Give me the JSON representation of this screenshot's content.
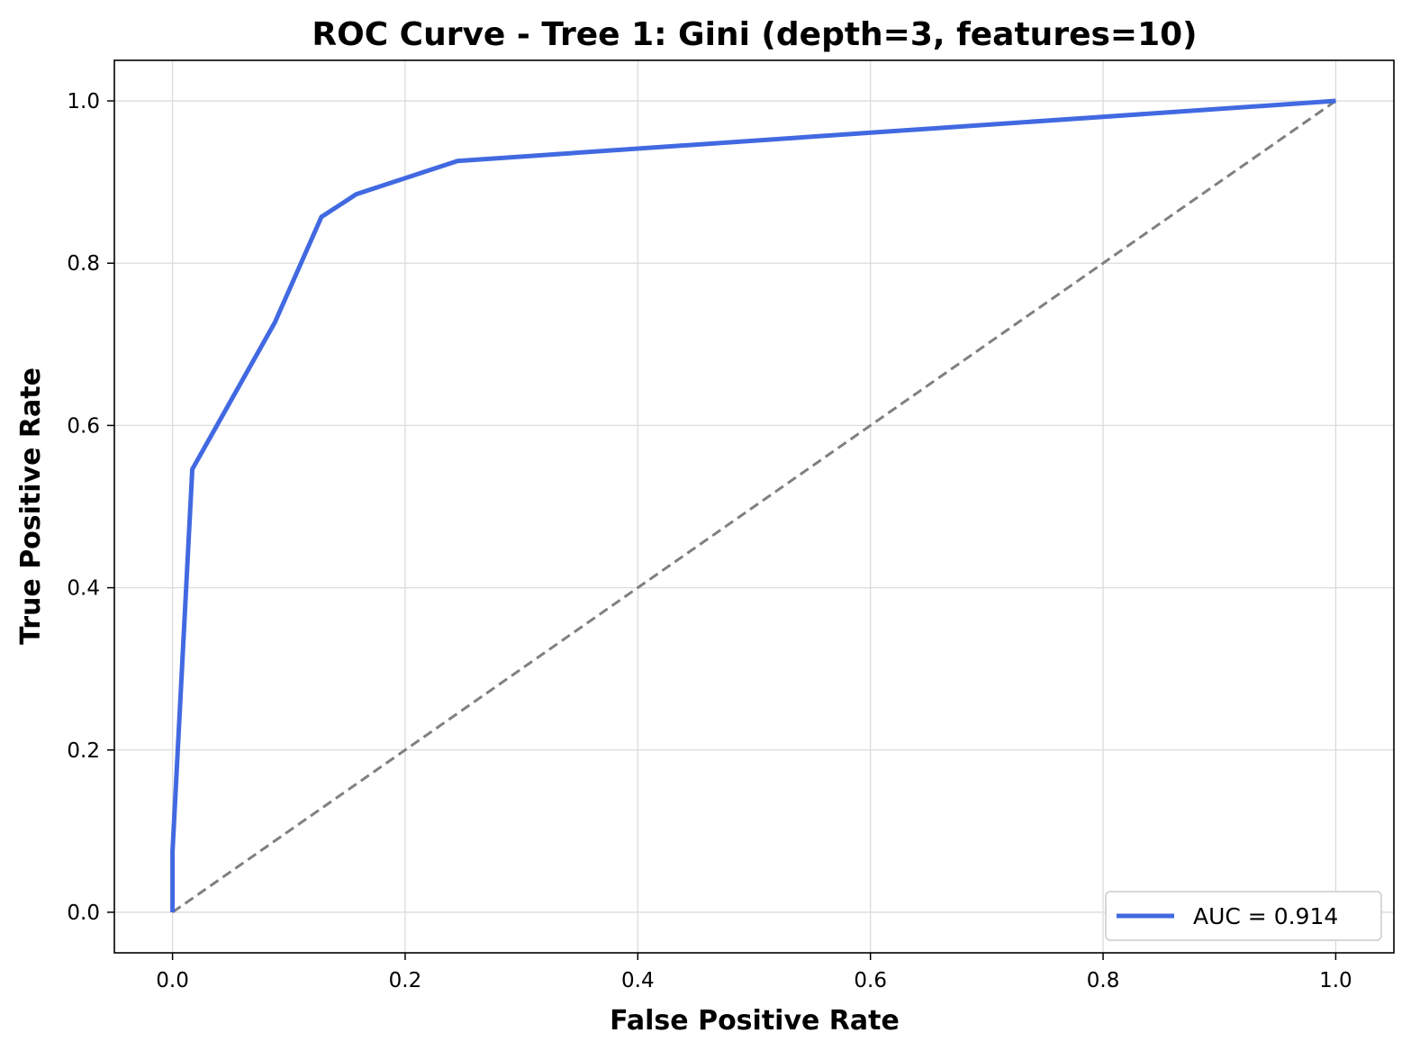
{
  "chart_data": {
    "type": "line",
    "title": "ROC Curve - Tree 1: Gini (depth=3, features=10)",
    "xlabel": "False Positive Rate",
    "ylabel": "True Positive Rate",
    "xlim": [
      -0.05,
      1.05
    ],
    "ylim": [
      -0.05,
      1.05
    ],
    "xticks": [
      0.0,
      0.2,
      0.4,
      0.6,
      0.8,
      1.0
    ],
    "yticks": [
      0.0,
      0.2,
      0.4,
      0.6,
      0.8,
      1.0
    ],
    "xtick_labels": [
      "0.0",
      "0.2",
      "0.4",
      "0.6",
      "0.8",
      "1.0"
    ],
    "ytick_labels": [
      "0.0",
      "0.2",
      "0.4",
      "0.6",
      "0.8",
      "1.0"
    ],
    "grid": true,
    "legend_position": "lower-right",
    "series": [
      {
        "name": "AUC = 0.914",
        "color": "#4169E1",
        "style": "solid",
        "x": [
          0.0,
          0.0,
          0.017,
          0.088,
          0.128,
          0.158,
          0.245,
          1.0
        ],
        "y": [
          0.0,
          0.075,
          0.546,
          0.727,
          0.857,
          0.885,
          0.926,
          1.0
        ]
      },
      {
        "color": "#808080",
        "style": "dashed",
        "x": [
          0.0,
          1.0
        ],
        "y": [
          0.0,
          1.0
        ]
      }
    ]
  }
}
